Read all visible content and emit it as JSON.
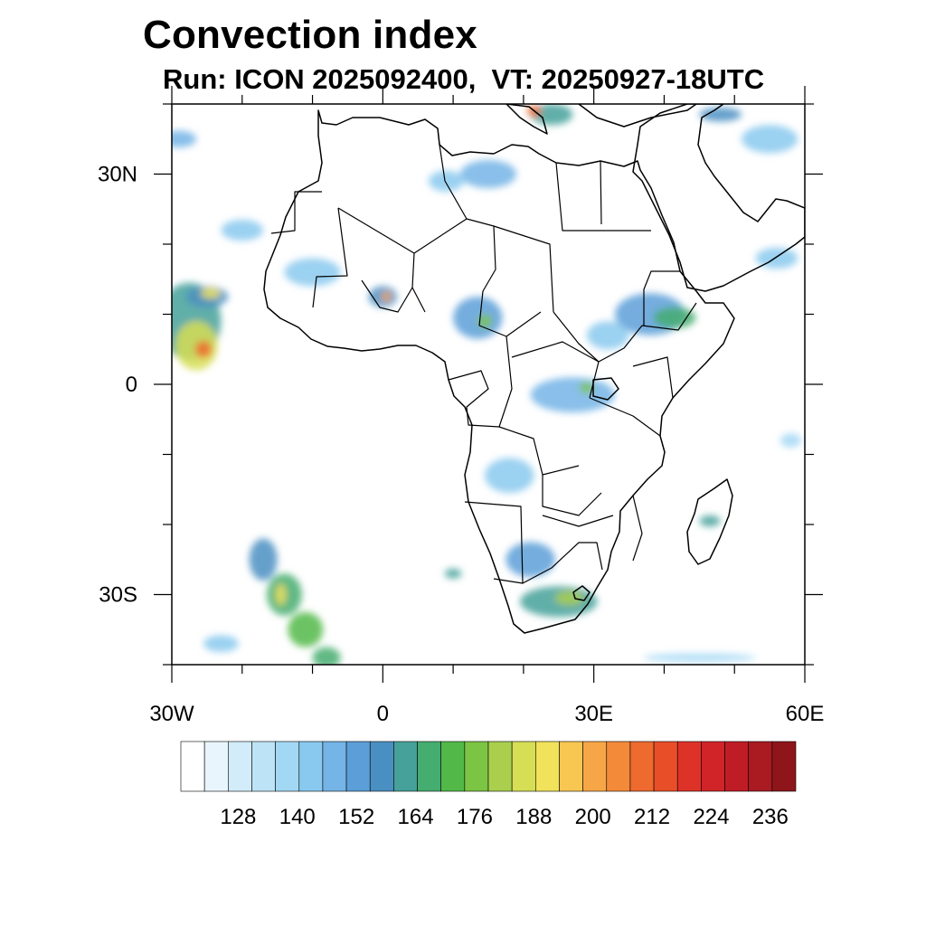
{
  "title": "Convection index",
  "subtitle": "Run: ICON 2025092400,  VT: 20250927-18UTC",
  "map": {
    "lon_range": [
      -30,
      60
    ],
    "lat_range": [
      -40,
      40
    ],
    "lat_ticks": [
      {
        "value": 30,
        "label": "30N"
      },
      {
        "value": 0,
        "label": "0"
      },
      {
        "value": -30,
        "label": "30S"
      }
    ],
    "lon_ticks": [
      {
        "value": -30,
        "label": "30W"
      },
      {
        "value": 0,
        "label": "0"
      },
      {
        "value": 30,
        "label": "30E"
      },
      {
        "value": 60,
        "label": "60E"
      }
    ]
  },
  "colorbar": {
    "colors": [
      "#ffffff",
      "#e8f5fc",
      "#d2ecf9",
      "#bde3f6",
      "#a3d8f4",
      "#8ac9ef",
      "#74b4e6",
      "#5c9fd8",
      "#4a8fc2",
      "#46a19a",
      "#45ad6f",
      "#52b948",
      "#7cc443",
      "#a9cf4d",
      "#d6de55",
      "#f0e25a",
      "#f8c752",
      "#f7a647",
      "#f38a3a",
      "#ee6a2e",
      "#e84e28",
      "#dd3228",
      "#d02429",
      "#bf1c26",
      "#a91a21",
      "#8e161b"
    ],
    "labels": [
      "128",
      "140",
      "152",
      "164",
      "176",
      "188",
      "200",
      "212",
      "224",
      "236"
    ],
    "label_box_index": [
      2,
      5,
      8,
      11,
      14,
      17,
      20,
      23,
      26,
      29
    ]
  },
  "convection_cells": [
    {
      "lon": -27.5,
      "lat": 9.0,
      "rlon": 4.5,
      "rlat": 5.5,
      "level": 9
    },
    {
      "lon": -26.5,
      "lat": 5.5,
      "rlon": 3.0,
      "rlat": 3.5,
      "level": 14
    },
    {
      "lon": -25.5,
      "lat": 5.0,
      "rlon": 1.2,
      "rlat": 1.2,
      "level": 19
    },
    {
      "lon": -25.0,
      "lat": 12.5,
      "rlon": 3.0,
      "rlat": 1.5,
      "level": 8
    },
    {
      "lon": -24.5,
      "lat": 13.0,
      "rlon": 1.4,
      "rlat": 0.8,
      "level": 15
    },
    {
      "lon": -29.0,
      "lat": 35.0,
      "rlon": 2.5,
      "rlat": 1.2,
      "level": 6
    },
    {
      "lon": -10.0,
      "lat": 16.0,
      "rlon": 4.0,
      "rlat": 2.0,
      "level": 5
    },
    {
      "lon": -20.0,
      "lat": 22.0,
      "rlon": 3.0,
      "rlat": 1.5,
      "level": 5
    },
    {
      "lon": 0.0,
      "lat": 12.5,
      "rlon": 2.0,
      "rlat": 1.5,
      "level": 8
    },
    {
      "lon": 0.5,
      "lat": 12.5,
      "rlon": 0.7,
      "rlat": 0.7,
      "level": 17
    },
    {
      "lon": 13.5,
      "lat": 9.5,
      "rlon": 3.5,
      "rlat": 3.0,
      "level": 7
    },
    {
      "lon": 14.5,
      "lat": 9.0,
      "rlon": 1.0,
      "rlat": 1.0,
      "level": 12
    },
    {
      "lon": 24.0,
      "lat": 38.5,
      "rlon": 3.0,
      "rlat": 1.5,
      "level": 9
    },
    {
      "lon": 21.5,
      "lat": 39.0,
      "rlon": 1.0,
      "rlat": 0.8,
      "level": 19
    },
    {
      "lon": 15.0,
      "lat": 30.0,
      "rlon": 4.0,
      "rlat": 2.0,
      "level": 6
    },
    {
      "lon": 9.0,
      "lat": 29.0,
      "rlon": 2.5,
      "rlat": 1.5,
      "level": 5
    },
    {
      "lon": 38.0,
      "lat": 10.0,
      "rlon": 5.0,
      "rlat": 3.0,
      "level": 7
    },
    {
      "lon": 41.5,
      "lat": 9.5,
      "rlon": 3.0,
      "rlat": 1.5,
      "level": 10
    },
    {
      "lon": 32.0,
      "lat": 7.0,
      "rlon": 3.0,
      "rlat": 2.0,
      "level": 5
    },
    {
      "lon": 27.0,
      "lat": -1.5,
      "rlon": 6.0,
      "rlat": 2.5,
      "level": 6
    },
    {
      "lon": 29.0,
      "lat": -0.5,
      "rlon": 1.0,
      "rlat": 0.8,
      "level": 12
    },
    {
      "lon": 18.0,
      "lat": -13.0,
      "rlon": 3.5,
      "rlat": 2.5,
      "level": 5
    },
    {
      "lon": 21.0,
      "lat": -25.0,
      "rlon": 3.5,
      "rlat": 2.5,
      "level": 7
    },
    {
      "lon": 25.0,
      "lat": -31.0,
      "rlon": 5.5,
      "rlat": 2.2,
      "level": 9
    },
    {
      "lon": 26.5,
      "lat": -30.5,
      "rlon": 2.0,
      "rlat": 1.0,
      "level": 13
    },
    {
      "lon": 46.5,
      "lat": -19.5,
      "rlon": 1.5,
      "rlat": 0.8,
      "level": 9
    },
    {
      "lon": -17.0,
      "lat": -25.0,
      "rlon": 2.0,
      "rlat": 3.0,
      "level": 8
    },
    {
      "lon": -14.0,
      "lat": -30.0,
      "rlon": 2.5,
      "rlat": 3.0,
      "level": 10
    },
    {
      "lon": -11.0,
      "lat": -35.0,
      "rlon": 2.5,
      "rlat": 2.5,
      "level": 11
    },
    {
      "lon": -8.0,
      "lat": -39.0,
      "rlon": 2.0,
      "rlat": 1.5,
      "level": 10
    },
    {
      "lon": -14.5,
      "lat": -30.0,
      "rlon": 0.7,
      "rlat": 1.5,
      "level": 15
    },
    {
      "lon": -23.0,
      "lat": -37.0,
      "rlon": 2.5,
      "rlat": 1.2,
      "level": 5
    },
    {
      "lon": 45.0,
      "lat": -39.0,
      "rlon": 8.0,
      "rlat": 0.6,
      "level": 4
    },
    {
      "lon": 55.0,
      "lat": 35.0,
      "rlon": 4.0,
      "rlat": 2.0,
      "level": 5
    },
    {
      "lon": 56.0,
      "lat": 18.0,
      "rlon": 3.0,
      "rlat": 1.5,
      "level": 5
    },
    {
      "lon": 48.0,
      "lat": 38.5,
      "rlon": 3.0,
      "rlat": 1.0,
      "level": 8
    },
    {
      "lon": 10.0,
      "lat": -27.0,
      "rlon": 1.2,
      "rlat": 0.7,
      "level": 9
    },
    {
      "lon": 58.0,
      "lat": -8.0,
      "rlon": 1.5,
      "rlat": 1.0,
      "level": 4
    }
  ]
}
